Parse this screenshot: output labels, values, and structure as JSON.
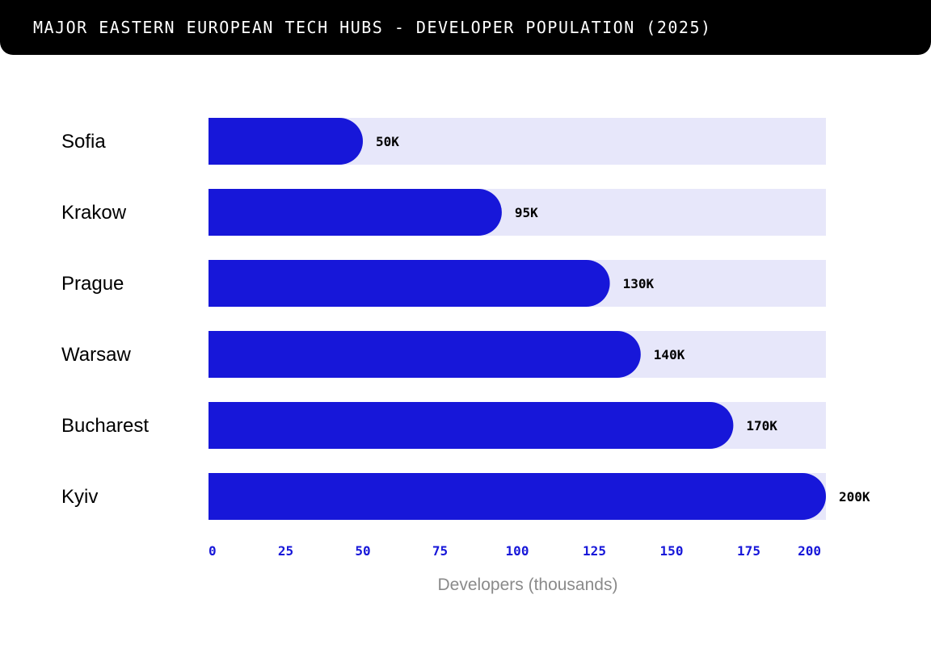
{
  "header": {
    "title": "MAJOR EASTERN EUROPEAN TECH HUBS - DEVELOPER POPULATION (2025)"
  },
  "colors": {
    "bar": "#1717d9",
    "track": "#e7e7fa",
    "tick": "#1717d9",
    "header_bg": "#000000"
  },
  "chart_data": {
    "type": "bar",
    "orientation": "horizontal",
    "title": "MAJOR EASTERN EUROPEAN TECH HUBS - DEVELOPER POPULATION (2025)",
    "categories": [
      "Sofia",
      "Krakow",
      "Prague",
      "Warsaw",
      "Bucharest",
      "Kyiv"
    ],
    "values": [
      50,
      95,
      130,
      140,
      170,
      200
    ],
    "value_labels": [
      "50K",
      "95K",
      "130K",
      "140K",
      "170K",
      "200K"
    ],
    "xlabel": "Developers (thousands)",
    "ylabel": "",
    "xlim": [
      0,
      200
    ],
    "xticks": [
      "0",
      "25",
      "50",
      "75",
      "100",
      "125",
      "150",
      "175",
      "200"
    ],
    "grid": false,
    "legend": "none"
  }
}
